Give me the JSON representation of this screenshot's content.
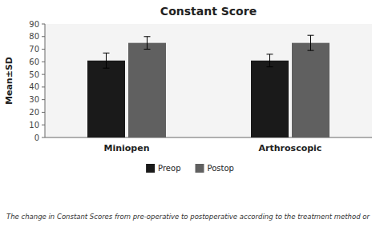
{
  "chart_data": {
    "type": "bar",
    "title": "Constant Score",
    "y_label": "Mean±SD",
    "categories": [
      "Miniopen",
      "Arthroscopic"
    ],
    "series": [
      {
        "name": "Preop",
        "color": "#1a1a1a",
        "values": [
          61,
          61
        ],
        "errors": [
          6,
          5
        ]
      },
      {
        "name": "Postop",
        "color": "#606060",
        "values": [
          75,
          75
        ],
        "errors": [
          5,
          6
        ]
      }
    ],
    "ylim": [
      0,
      90
    ],
    "yticks": [
      0,
      10,
      20,
      30,
      40,
      50,
      60,
      70,
      80,
      90
    ],
    "grid": false,
    "legend": "bottom",
    "caption": "The change in Constant Scores from pre-operative to postoperative according to the treatment method or"
  }
}
